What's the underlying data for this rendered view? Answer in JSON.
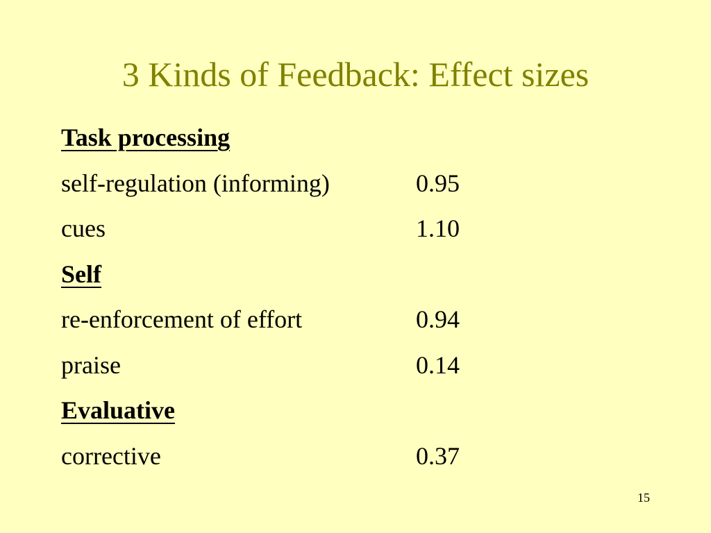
{
  "title": "3 Kinds of Feedback: Effect sizes",
  "sections": [
    {
      "heading": "Task processing",
      "items": [
        {
          "label": "self-regulation (informing)",
          "value": "0.95"
        },
        {
          "label": "cues",
          "value": "1.10"
        }
      ]
    },
    {
      "heading": "Self",
      "items": [
        {
          "label": "re-enforcement of effort",
          "value": "0.94"
        },
        {
          "label": "praise",
          "value": "0.14"
        }
      ]
    },
    {
      "heading": "Evaluative",
      "items": [
        {
          "label": "corrective",
          "value": "0.37"
        }
      ]
    }
  ],
  "slide_number": "15",
  "colors": {
    "background": "#ffffc0",
    "title": "#808000",
    "text": "#000000"
  }
}
